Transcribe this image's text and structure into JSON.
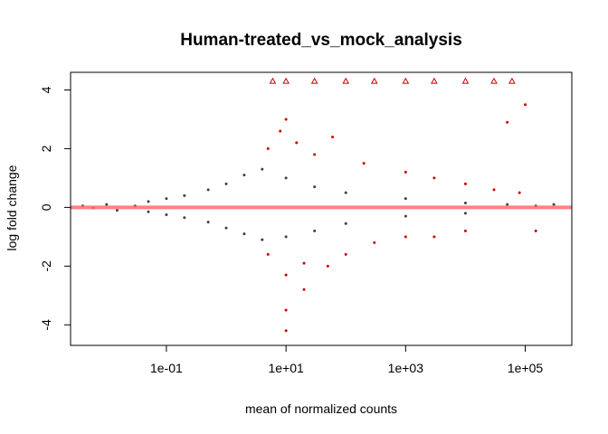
{
  "chart_data": {
    "type": "scatter",
    "title": "Human-treated_vs_mock_analysis",
    "xlabel": "mean of normalized counts",
    "ylabel": "log fold change",
    "x_scale": "log10",
    "xlim": [
      0.0025,
      600000
    ],
    "ylim": [
      -4.7,
      4.6
    ],
    "x_ticks": [
      {
        "value": 0.1,
        "label": "1e-01"
      },
      {
        "value": 10,
        "label": "1e+01"
      },
      {
        "value": 1000,
        "label": "1e+03"
      },
      {
        "value": 100000,
        "label": "1e+05"
      }
    ],
    "y_ticks": [
      {
        "value": -4,
        "label": "-4"
      },
      {
        "value": -2,
        "label": "-2"
      },
      {
        "value": 0,
        "label": "0"
      },
      {
        "value": 2,
        "label": "2"
      },
      {
        "value": 4,
        "label": "4"
      }
    ],
    "reference_line": {
      "y": 0,
      "color": "#ff6b6b"
    },
    "grid": false,
    "colors": {
      "not_significant": "#404040",
      "significant": "#cc0000"
    },
    "series": [
      {
        "significant": false,
        "marker": "point",
        "points": [
          [
            0.004,
            0.05
          ],
          [
            0.006,
            -0.02
          ],
          [
            0.01,
            0.1
          ],
          [
            0.015,
            -0.1
          ],
          [
            0.03,
            0.05
          ],
          [
            0.05,
            0.2
          ],
          [
            0.05,
            -0.15
          ],
          [
            0.1,
            0.3
          ],
          [
            0.1,
            -0.25
          ],
          [
            0.2,
            0.4
          ],
          [
            0.2,
            -0.35
          ],
          [
            0.5,
            0.6
          ],
          [
            0.5,
            -0.5
          ],
          [
            1,
            0.8
          ],
          [
            1,
            -0.7
          ],
          [
            2,
            1.1
          ],
          [
            2,
            -0.9
          ],
          [
            4,
            1.3
          ],
          [
            4,
            -1.1
          ],
          [
            10,
            1.0
          ],
          [
            10,
            -1.0
          ],
          [
            30,
            0.7
          ],
          [
            30,
            -0.8
          ],
          [
            100,
            0.5
          ],
          [
            100,
            -0.55
          ],
          [
            1000,
            0.3
          ],
          [
            1000,
            -0.3
          ],
          [
            10000,
            0.15
          ],
          [
            10000,
            -0.2
          ],
          [
            50000,
            0.1
          ],
          [
            150000,
            0.05
          ],
          [
            300000,
            0.1
          ]
        ]
      },
      {
        "significant": true,
        "marker": "point",
        "points": [
          [
            5,
            2.0
          ],
          [
            8,
            2.6
          ],
          [
            10,
            3.0
          ],
          [
            15,
            2.2
          ],
          [
            30,
            1.8
          ],
          [
            60,
            2.4
          ],
          [
            200,
            1.5
          ],
          [
            1000,
            1.2
          ],
          [
            3000,
            1.0
          ],
          [
            10000,
            0.8
          ],
          [
            30000,
            0.6
          ],
          [
            5,
            -1.6
          ],
          [
            10,
            -2.3
          ],
          [
            20,
            -1.9
          ],
          [
            50,
            -2.0
          ],
          [
            100,
            -1.6
          ],
          [
            300,
            -1.2
          ],
          [
            1000,
            -1.0
          ],
          [
            3000,
            -1.0
          ],
          [
            10000,
            -0.8
          ],
          [
            20,
            -2.8
          ],
          [
            10,
            -4.2
          ],
          [
            10,
            -3.5
          ],
          [
            80000,
            0.5
          ],
          [
            150000,
            -0.8
          ],
          [
            100000,
            3.5
          ],
          [
            50000,
            2.9
          ]
        ]
      },
      {
        "significant": true,
        "marker": "triangle",
        "note": "outside plot range",
        "points": [
          [
            6,
            4.3
          ],
          [
            10,
            4.3
          ],
          [
            30,
            4.3
          ],
          [
            100,
            4.3
          ],
          [
            300,
            4.3
          ],
          [
            1000,
            4.3
          ],
          [
            3000,
            4.3
          ],
          [
            10000,
            4.3
          ],
          [
            30000,
            4.3
          ],
          [
            60000,
            4.3
          ]
        ]
      }
    ]
  }
}
